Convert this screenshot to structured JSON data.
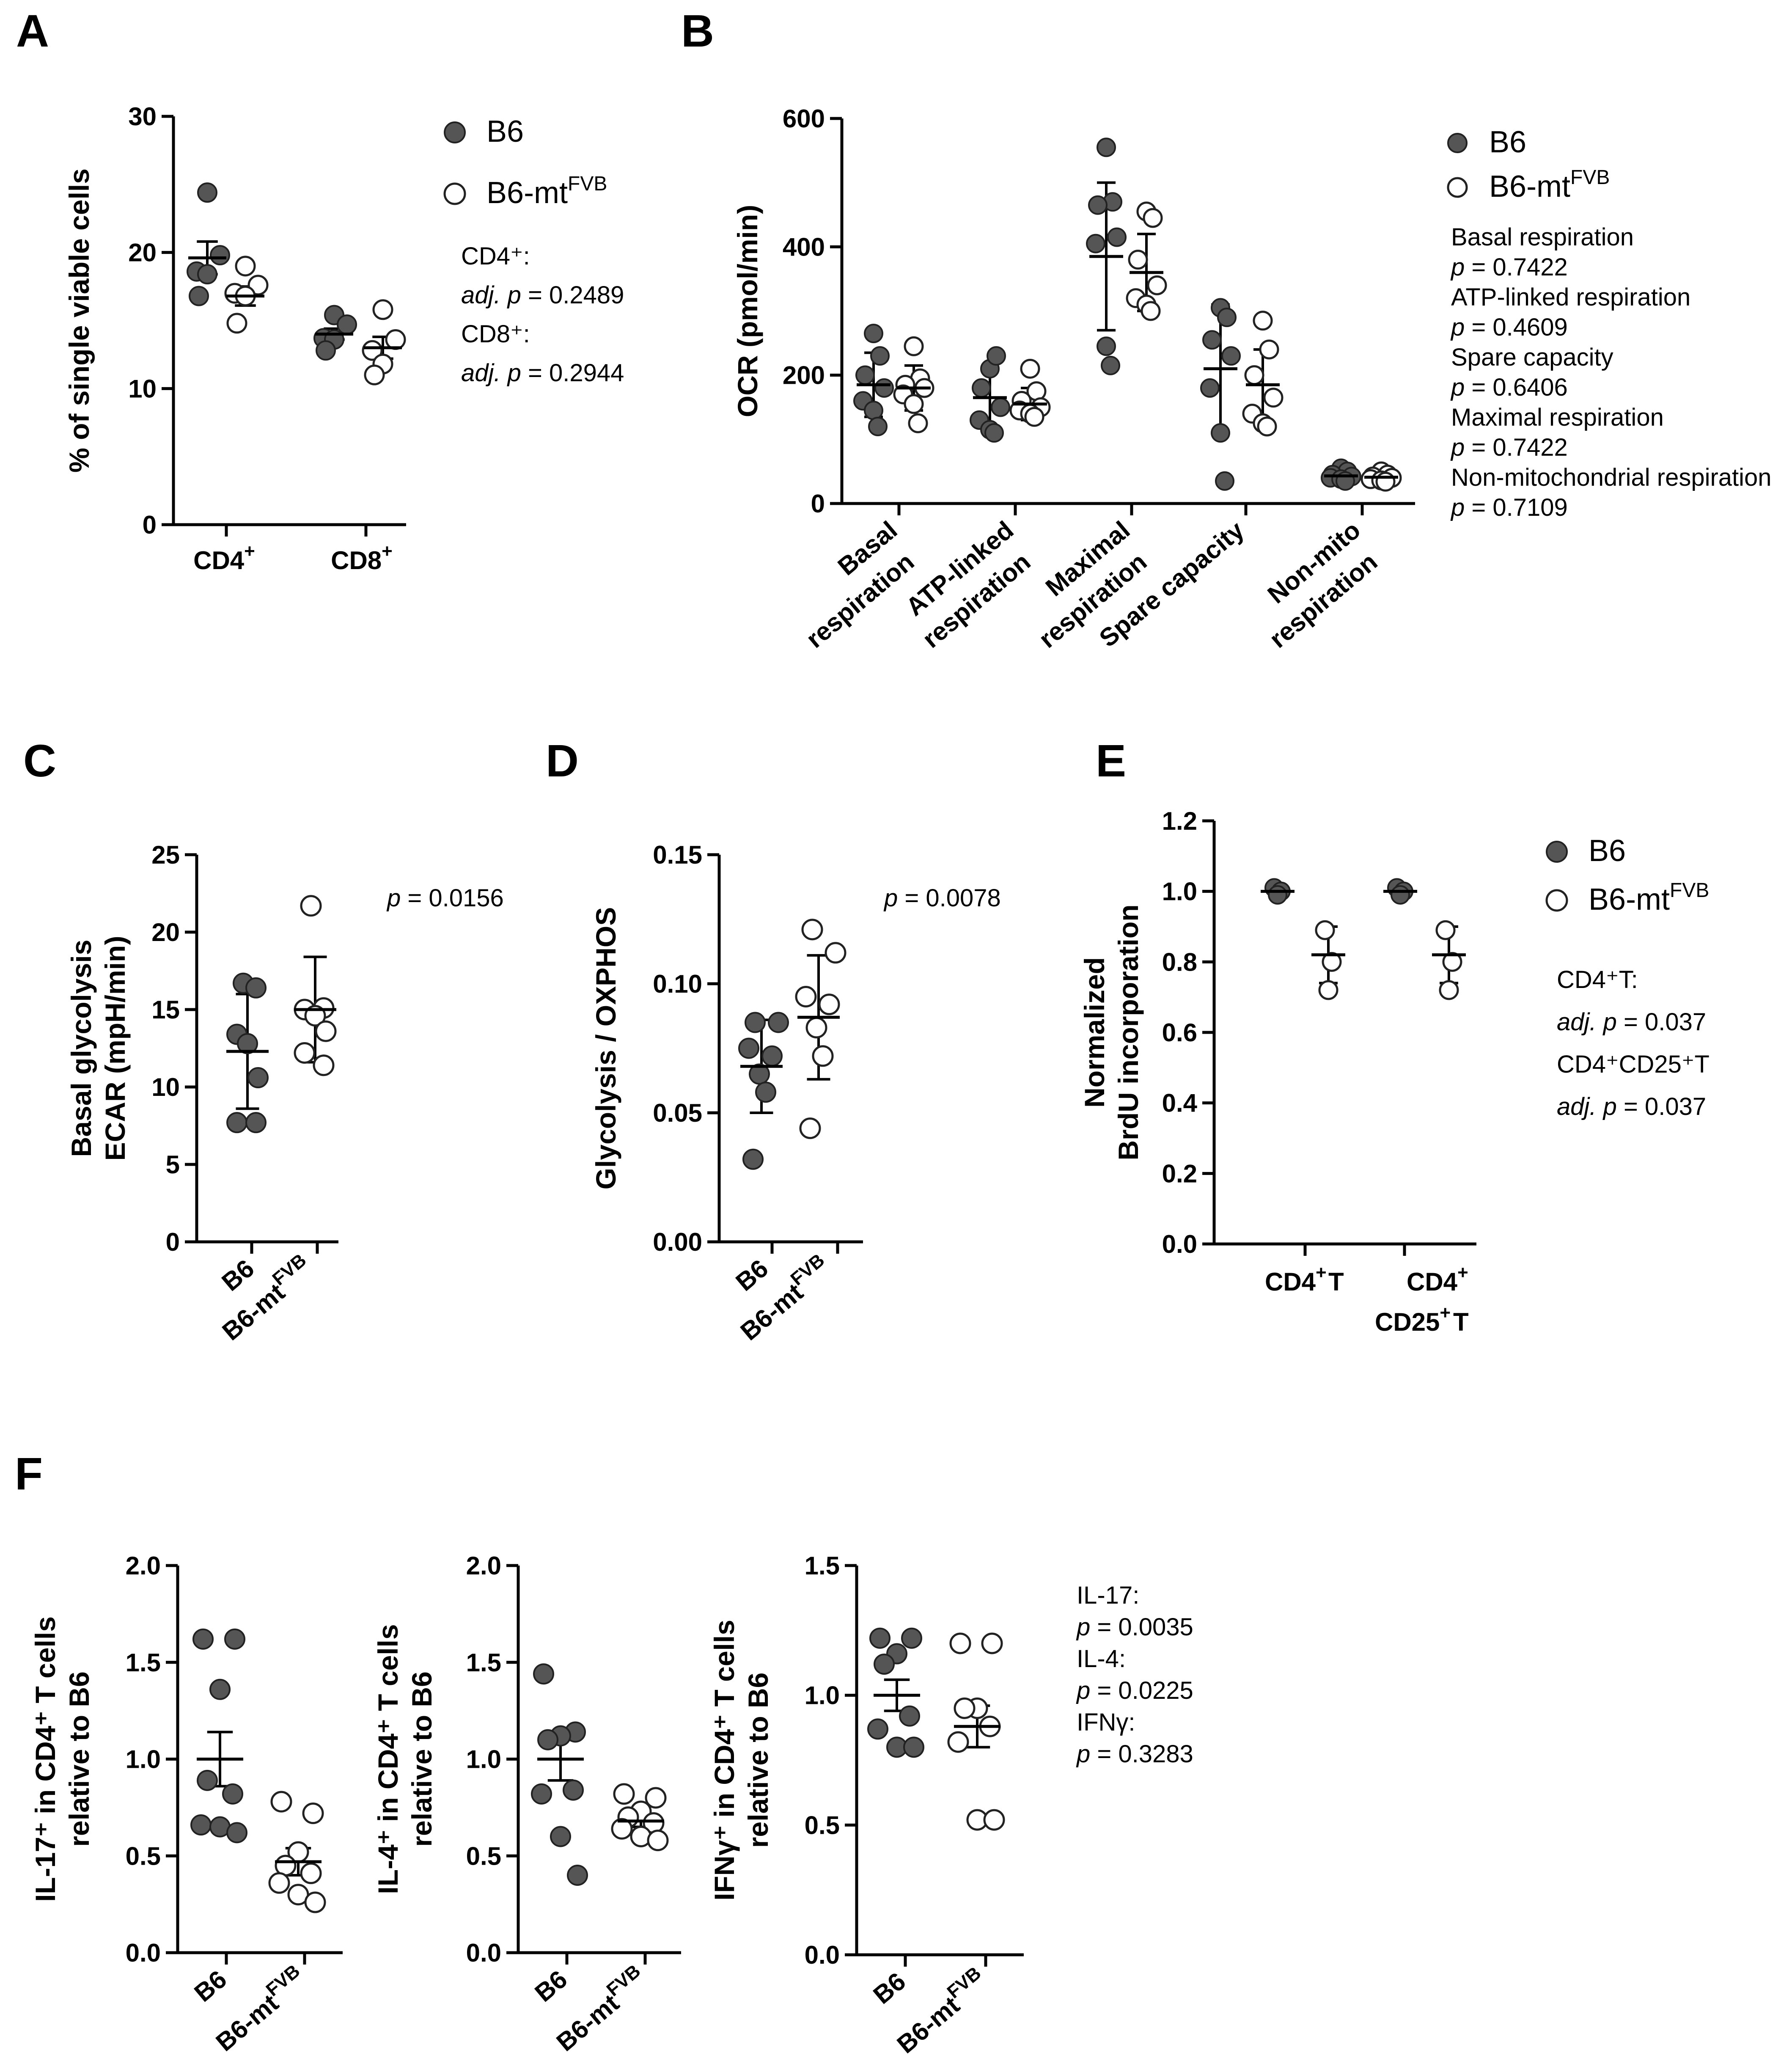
{
  "panels": {
    "A": {
      "label": "A",
      "chart_data": {
        "type": "scatter",
        "categories": [
          "CD4+",
          "CD8+"
        ],
        "ylabel": "% of single viable cells",
        "ylim": [
          0,
          30
        ],
        "yticks": [
          0,
          10,
          20,
          30
        ],
        "series": [
          {
            "name": "B6",
            "values": [
              [
                24.4,
                19.8,
                18.6,
                18.4,
                16.8
              ],
              [
                15.4,
                14.7,
                13.7,
                13.6,
                12.8
              ]
            ],
            "mean": [
              19.6,
              14.0
            ],
            "err": [
              1.2,
              0.4
            ]
          },
          {
            "name": "B6-mtFVB",
            "values": [
              [
                19.0,
                17.6,
                17.0,
                16.8,
                14.8
              ],
              [
                15.8,
                13.6,
                12.8,
                11.8,
                11.0
              ]
            ],
            "mean": [
              16.8,
              13.0
            ],
            "err": [
              0.7,
              0.8
            ]
          }
        ]
      },
      "legend": [
        {
          "text": "B6",
          "style": "filled"
        },
        {
          "text": "B6-mt",
          "sup": "FVB",
          "style": "open"
        }
      ],
      "notes": [
        "CD4⁺:",
        "adj. p = 0.2489",
        "CD8⁺:",
        "adj. p = 0.2944"
      ]
    },
    "B": {
      "label": "B",
      "chart_data": {
        "type": "scatter",
        "categories": [
          "Basal respiration",
          "ATP-linked respiration",
          "Maximal respiration",
          "Spare capacity",
          "Non-mito respiration"
        ],
        "ylabel": "OCR (pmol/min)",
        "ylim": [
          0,
          600
        ],
        "yticks": [
          0,
          200,
          400,
          600
        ],
        "series": [
          {
            "name": "B6",
            "values": [
              [
                265,
                230,
                200,
                180,
                160,
                145,
                120
              ],
              [
                210,
                230,
                180,
                150,
                130,
                115,
                110
              ],
              [
                555,
                470,
                465,
                415,
                405,
                245,
                215
              ],
              [
                305,
                290,
                255,
                230,
                180,
                110,
                35
              ],
              [
                55,
                50,
                45,
                42,
                40,
                38,
                35
              ]
            ],
            "mean": [
              185,
              165,
              385,
              210,
              43
            ],
            "err": [
              50,
              45,
              115,
              100,
              7
            ]
          },
          {
            "name": "B6-mtFVB",
            "values": [
              [
                245,
                195,
                185,
                180,
                170,
                155,
                125
              ],
              [
                210,
                175,
                160,
                150,
                145,
                140,
                135
              ],
              [
                455,
                445,
                380,
                340,
                320,
                310,
                300
              ],
              [
                285,
                240,
                200,
                165,
                140,
                125,
                120
              ],
              [
                50,
                45,
                42,
                40,
                38,
                36,
                34
              ]
            ],
            "mean": [
              180,
              155,
              360,
              185,
              41
            ],
            "err": [
              35,
              25,
              60,
              55,
              5
            ]
          }
        ]
      },
      "legend": [
        {
          "text": "B6",
          "style": "filled"
        },
        {
          "text": "B6-mt",
          "sup": "FVB",
          "style": "open"
        }
      ],
      "notes": [
        "Basal respiration",
        "p = 0.7422",
        "ATP-linked respiration",
        "p = 0.4609",
        "Spare capacity",
        "p = 0.6406",
        "Maximal respiration",
        "p = 0.7422",
        "Non-mitochondrial respiration",
        "p = 0.7109"
      ]
    },
    "C": {
      "label": "C",
      "chart_data": {
        "type": "scatter",
        "categories": [
          "B6",
          "B6-mtFVB"
        ],
        "ylabel": [
          "Basal glycolysis",
          "ECAR (mpH/min)"
        ],
        "ylim": [
          0,
          25
        ],
        "yticks": [
          0,
          5,
          10,
          15,
          20,
          25
        ],
        "series": [
          {
            "name": "B6",
            "values": [
              16.7,
              16.4,
              13.4,
              12.8,
              10.6,
              7.7,
              7.7
            ],
            "mean": 12.3,
            "err": 3.7
          },
          {
            "name": "B6-mtFVB",
            "values": [
              21.7,
              15.1,
              15.0,
              14.6,
              13.6,
              12.2,
              11.4
            ],
            "mean": 15.0,
            "err": 3.4
          }
        ]
      },
      "pvalue": "p = 0.0156"
    },
    "D": {
      "label": "D",
      "chart_data": {
        "type": "scatter",
        "categories": [
          "B6",
          "B6-mtFVB"
        ],
        "ylabel": "Glycolysis / OXPHOS",
        "ylim": [
          0,
          0.15
        ],
        "yticks": [
          "0.00",
          "0.05",
          "0.10",
          "0.15"
        ],
        "series": [
          {
            "name": "B6",
            "values": [
              0.085,
              0.085,
              0.075,
              0.072,
              0.065,
              0.058,
              0.032
            ],
            "mean": 0.068,
            "err": 0.018
          },
          {
            "name": "B6-mtFVB",
            "values": [
              0.121,
              0.112,
              0.095,
              0.092,
              0.083,
              0.072,
              0.044
            ],
            "mean": 0.087,
            "err": 0.024
          }
        ]
      },
      "pvalue": "p = 0.0078"
    },
    "E": {
      "label": "E",
      "chart_data": {
        "type": "scatter",
        "categories": [
          "CD4⁺ T",
          [
            "CD4⁺",
            "CD25⁺ T"
          ]
        ],
        "ylabel": [
          "Normalized",
          "BrdU incorporation"
        ],
        "ylim": [
          0,
          1.2
        ],
        "yticks": [
          "0.0",
          "0.2",
          "0.4",
          "0.6",
          "0.8",
          "1.0",
          "1.2"
        ],
        "series": [
          {
            "name": "B6",
            "values": [
              [
                1.01,
                1.0,
                0.99
              ],
              [
                1.01,
                1.0,
                0.99
              ]
            ],
            "mean": [
              1.0,
              1.0
            ],
            "err": [
              0.005,
              0.005
            ]
          },
          {
            "name": "B6-mtFVB",
            "values": [
              [
                0.89,
                0.8,
                0.72
              ],
              [
                0.89,
                0.8,
                0.72
              ]
            ],
            "mean": [
              0.82,
              0.82
            ],
            "err": [
              0.08,
              0.08
            ]
          }
        ]
      },
      "legend": [
        {
          "text": "B6",
          "style": "filled"
        },
        {
          "text": "B6-mt",
          "sup": "FVB",
          "style": "open"
        }
      ],
      "notes": [
        "CD4⁺T:",
        "adj. p = 0.037",
        "CD4⁺CD25⁺T",
        "adj. p = 0.037"
      ]
    },
    "F": {
      "label": "F",
      "charts": [
        {
          "chart_data": {
            "type": "scatter",
            "categories": [
              "B6",
              "B6-mtFVB"
            ],
            "ylabel": [
              "IL-17⁺ in CD4⁺ T cells",
              "relative to B6"
            ],
            "ylim": [
              0,
              2.0
            ],
            "yticks": [
              "0.0",
              "0.5",
              "1.0",
              "1.5",
              "2.0"
            ],
            "series": [
              {
                "name": "B6",
                "values": [
                  1.62,
                  1.62,
                  1.36,
                  0.89,
                  0.82,
                  0.66,
                  0.65,
                  0.62
                ],
                "mean": 1.0,
                "err": 0.14
              },
              {
                "name": "B6-mtFVB",
                "values": [
                  0.78,
                  0.72,
                  0.52,
                  0.45,
                  0.41,
                  0.36,
                  0.3,
                  0.26
                ],
                "mean": 0.47,
                "err": 0.07
              }
            ]
          }
        },
        {
          "chart_data": {
            "type": "scatter",
            "categories": [
              "B6",
              "B6-mtFVB"
            ],
            "ylabel": [
              "IL-4⁺ in CD4⁺ T cells",
              "relative to B6"
            ],
            "ylim": [
              0,
              2.0
            ],
            "yticks": [
              "0.0",
              "0.5",
              "1.0",
              "1.5",
              "2.0"
            ],
            "series": [
              {
                "name": "B6",
                "values": [
                  1.44,
                  1.14,
                  1.12,
                  1.1,
                  0.84,
                  0.82,
                  0.6,
                  0.4
                ],
                "mean": 1.0,
                "err": 0.11
              },
              {
                "name": "B6-mtFVB",
                "values": [
                  0.82,
                  0.8,
                  0.73,
                  0.7,
                  0.67,
                  0.64,
                  0.6,
                  0.58
                ],
                "mean": 0.68,
                "err": 0.03
              }
            ]
          }
        },
        {
          "chart_data": {
            "type": "scatter",
            "categories": [
              "B6",
              "B6-mtFVB"
            ],
            "ylabel": [
              "IFNγ⁺ in CD4⁺ T cells",
              "relative to B6"
            ],
            "ylim": [
              0,
              1.5
            ],
            "yticks": [
              "0.0",
              "0.5",
              "1.0",
              "1.5"
            ],
            "series": [
              {
                "name": "B6",
                "values": [
                  1.22,
                  1.22,
                  1.16,
                  1.12,
                  0.92,
                  0.87,
                  0.8,
                  0.8
                ],
                "mean": 1.0,
                "err": 0.06
              },
              {
                "name": "B6-mtFVB",
                "values": [
                  1.2,
                  1.2,
                  0.95,
                  0.95,
                  0.88,
                  0.82,
                  0.52,
                  0.52
                ],
                "mean": 0.88,
                "err": 0.08
              }
            ]
          }
        }
      ],
      "notes": [
        "IL-17:",
        "p = 0.0035",
        "IL-4:",
        "p = 0.0225",
        "IFNγ:",
        "p = 0.3283"
      ]
    }
  },
  "colors": {
    "filled": "#555555",
    "stroke": "#222222",
    "open": "#ffffff",
    "text": "#000000"
  }
}
